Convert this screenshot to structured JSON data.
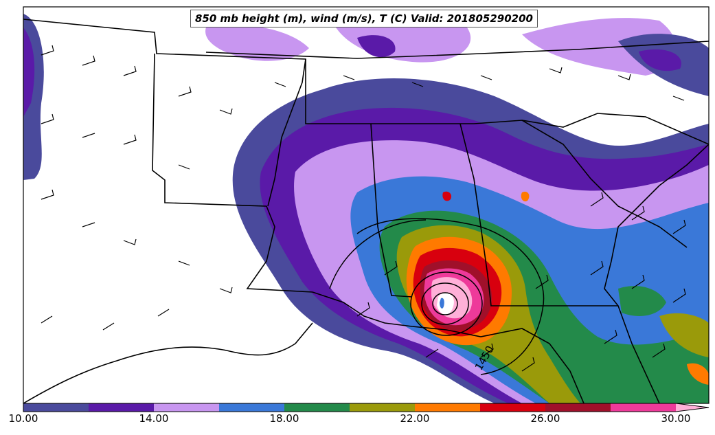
{
  "title": "850 mb height (m), wind (m/s), T (C) Valid: 201805290200",
  "contour_label": "1450",
  "colorbar": {
    "ticks": [
      "10.00",
      "14.00",
      "18.00",
      "22.00",
      "26.00",
      "30.00"
    ],
    "colors": [
      "#4a4a9c",
      "#5a1aa8",
      "#c896f0",
      "#3a78d8",
      "#238a4a",
      "#9a9a0a",
      "#ff7a00",
      "#d8000e",
      "#a0102a",
      "#ee3a9a",
      "#ffb0d8"
    ]
  }
}
